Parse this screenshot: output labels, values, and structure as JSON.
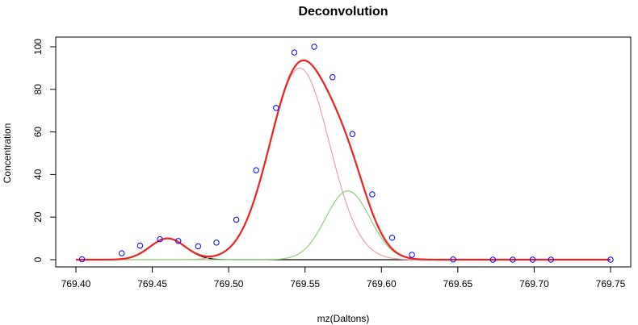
{
  "chart_data": {
    "type": "line",
    "title": "Deconvolution",
    "xlabel": "mz(Daltons)",
    "ylabel": "Concentration",
    "xlim": [
      769.4,
      769.75
    ],
    "ylim": [
      0,
      100
    ],
    "x_ticks": [
      "769.40",
      "769.45",
      "769.50",
      "769.55",
      "769.60",
      "769.65",
      "769.70",
      "769.75"
    ],
    "y_ticks": [
      "0",
      "20",
      "40",
      "60",
      "80",
      "100"
    ],
    "grid": false,
    "legend": "none",
    "observed_points": {
      "color": "#0000ff",
      "x": [
        769.404,
        769.43,
        769.442,
        769.455,
        769.467,
        769.48,
        769.492,
        769.505,
        769.518,
        769.531,
        769.543,
        769.556,
        769.568,
        769.581,
        769.594,
        769.607,
        769.62,
        769.647,
        769.673,
        769.686,
        769.699,
        769.711,
        769.75
      ],
      "y": [
        0.2,
        3.0,
        6.6,
        9.6,
        8.8,
        6.3,
        8.0,
        18.8,
        42.0,
        71.3,
        97.3,
        100.0,
        85.7,
        59.0,
        30.7,
        10.3,
        2.3,
        0.1,
        0.0,
        0.0,
        0.0,
        0.0,
        0.0
      ]
    },
    "components": [
      {
        "color": "#000000",
        "center": 769.46,
        "height": 10.0,
        "sigma": 0.0115
      },
      {
        "color": "#e7a1a6",
        "center": 769.5465,
        "height": 90.0,
        "sigma": 0.0195
      },
      {
        "color": "#8bd17a",
        "center": 769.578,
        "height": 32.3,
        "sigma": 0.0145
      }
    ],
    "sum_curve": {
      "color": "#ee2222"
    }
  }
}
